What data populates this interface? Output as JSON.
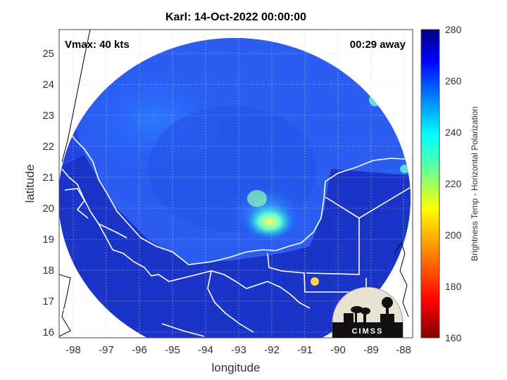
{
  "title": "Karl: 14-Oct-2022 00:00:00",
  "annotations": {
    "vmax": "Vmax: 40 kts",
    "away": "00:29 away"
  },
  "axes": {
    "xlabel": "longitude",
    "ylabel": "latitude",
    "x_ticks": [
      "-98",
      "-97",
      "-96",
      "-95",
      "-94",
      "-93",
      "-92",
      "-91",
      "-90",
      "-89",
      "-88"
    ],
    "y_ticks": [
      "16",
      "17",
      "18",
      "19",
      "20",
      "21",
      "22",
      "23",
      "24",
      "25"
    ],
    "xlim": [
      -98.3,
      -87.8
    ],
    "ylim": [
      15.8,
      25.8
    ]
  },
  "colorbar": {
    "label": "Brightness Temp - Horizontal Polarization",
    "ticks": [
      "160",
      "180",
      "200",
      "220",
      "240",
      "260",
      "280"
    ],
    "range": [
      160,
      280
    ]
  },
  "logo": {
    "text": "CIMSS"
  },
  "colors": {
    "background_swath": "#1c3fd6",
    "coast": "#ffffff",
    "land_outside": "#000000"
  }
}
